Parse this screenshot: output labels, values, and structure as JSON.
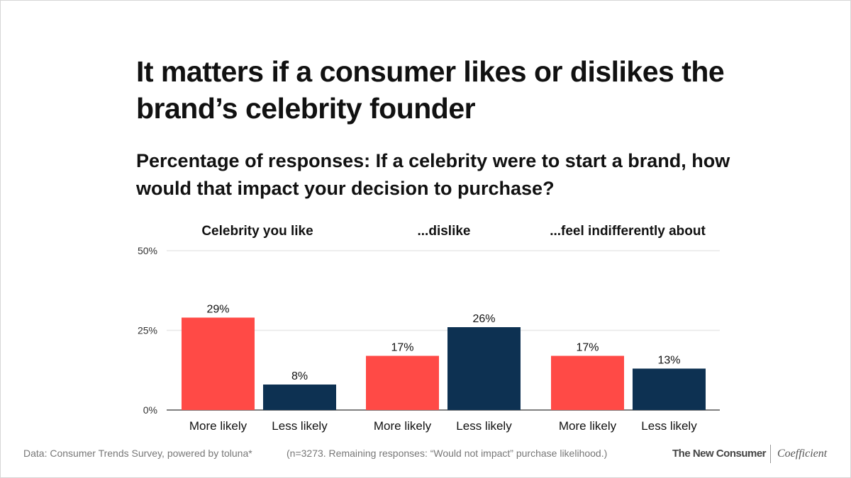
{
  "title": "It matters if a consumer likes or dislikes the brand’s celebrity founder",
  "subtitle": "Percentage of responses: If a celebrity were to start a brand, how would that impact your decision to purchase?",
  "colors": {
    "more_likely": "#ff4a46",
    "less_likely": "#0d3152",
    "grid": "#e8e8e8",
    "axis": "#555555"
  },
  "chart_data": {
    "type": "bar",
    "groups": [
      "Celebrity you like",
      "...dislike",
      "...feel indifferently about"
    ],
    "categories": [
      "More likely",
      "Less likely"
    ],
    "values": [
      [
        29,
        8
      ],
      [
        17,
        26
      ],
      [
        17,
        13
      ]
    ],
    "data_labels": [
      [
        "29%",
        "8%"
      ],
      [
        "17%",
        "26%"
      ],
      [
        "17%",
        "13%"
      ]
    ],
    "ylim": [
      0,
      50
    ],
    "yticks": [
      "0%",
      "25%",
      "50%"
    ],
    "ytick_values": [
      0,
      25,
      50
    ],
    "grid": true,
    "legend": "none"
  },
  "footer": {
    "source": "Data: Consumer Trends Survey, powered by toluna*",
    "note": "(n=3273. Remaining responses: “Would not impact” purchase likelihood.)",
    "brand1": "The New Consumer",
    "brand2": "Coefficient"
  }
}
